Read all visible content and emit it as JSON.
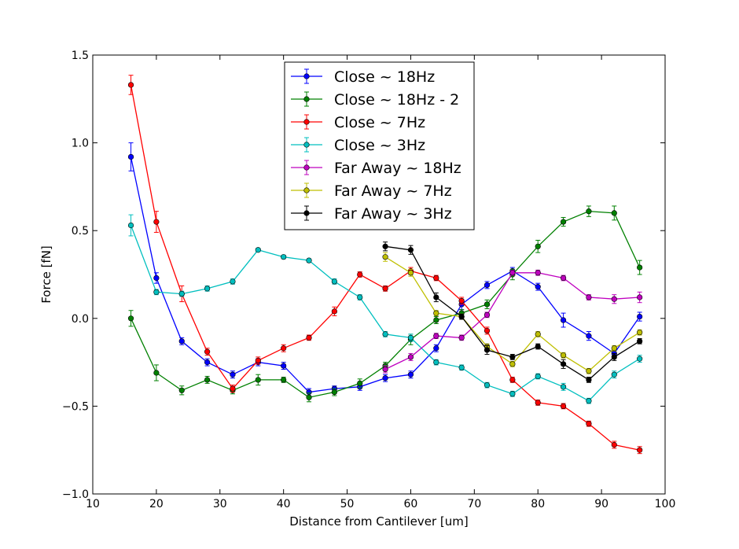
{
  "chart_data": {
    "type": "line",
    "title": "",
    "xlabel": "Distance from Cantilever [um]",
    "ylabel": "Force [fN]",
    "xlim": [
      10,
      100
    ],
    "ylim": [
      -1.0,
      1.5
    ],
    "xticks": [
      10,
      20,
      30,
      40,
      50,
      60,
      70,
      80,
      90,
      100
    ],
    "yticks": [
      -1.0,
      -0.5,
      0.0,
      0.5,
      1.0,
      1.5
    ],
    "xtick_labels": [
      "10",
      "20",
      "30",
      "40",
      "50",
      "60",
      "70",
      "80",
      "90",
      "100"
    ],
    "ytick_labels": [
      "−1.0",
      "−0.5",
      "0.0",
      "0.5",
      "1.0",
      "1.5"
    ],
    "grid": false,
    "legend_position": "top-center",
    "series": [
      {
        "name": "Close ~ 18Hz",
        "color": "#0000ff",
        "x": [
          16,
          20,
          24,
          28,
          32,
          36,
          40,
          44,
          48,
          52,
          56,
          60,
          64,
          68,
          72,
          76,
          80,
          84,
          88,
          92,
          96
        ],
        "y": [
          0.92,
          0.23,
          -0.13,
          -0.25,
          -0.32,
          -0.25,
          -0.27,
          -0.42,
          -0.4,
          -0.39,
          -0.34,
          -0.32,
          -0.17,
          0.08,
          0.19,
          0.27,
          0.18,
          -0.01,
          -0.1,
          -0.2,
          0.01
        ],
        "err": [
          0.08,
          0.03,
          0.02,
          0.02,
          0.02,
          0.02,
          0.02,
          0.02,
          0.015,
          0.02,
          0.02,
          0.02,
          0.02,
          0.03,
          0.02,
          0.02,
          0.02,
          0.04,
          0.025,
          0.02,
          0.025
        ]
      },
      {
        "name": "Close ~ 18Hz - 2",
        "color": "#008000",
        "x": [
          16,
          20,
          24,
          28,
          32,
          36,
          40,
          44,
          48,
          52,
          56,
          60,
          64,
          68,
          72,
          76,
          80,
          84,
          88,
          92,
          96
        ],
        "y": [
          0.0,
          -0.31,
          -0.41,
          -0.35,
          -0.41,
          -0.35,
          -0.35,
          -0.45,
          -0.42,
          -0.37,
          -0.27,
          -0.12,
          -0.01,
          0.03,
          0.08,
          0.25,
          0.41,
          0.55,
          0.61,
          0.6,
          0.29
        ],
        "err": [
          0.045,
          0.045,
          0.025,
          0.02,
          0.02,
          0.03,
          0.015,
          0.025,
          0.02,
          0.025,
          0.02,
          0.03,
          0.02,
          0.02,
          0.025,
          0.03,
          0.035,
          0.025,
          0.03,
          0.04,
          0.04
        ]
      },
      {
        "name": "Close ~ 7Hz",
        "color": "#ff0000",
        "x": [
          16,
          20,
          24,
          28,
          32,
          36,
          40,
          44,
          48,
          52,
          56,
          60,
          64,
          68,
          72,
          76,
          80,
          84,
          88,
          92,
          96
        ],
        "y": [
          1.33,
          0.55,
          0.14,
          -0.19,
          -0.4,
          -0.24,
          -0.17,
          -0.11,
          0.04,
          0.25,
          0.17,
          0.27,
          0.23,
          0.1,
          -0.07,
          -0.35,
          -0.48,
          -0.5,
          -0.6,
          -0.72,
          -0.75
        ],
        "err": [
          0.055,
          0.06,
          0.045,
          0.02,
          0.02,
          0.02,
          0.02,
          0.015,
          0.025,
          0.015,
          0.015,
          0.02,
          0.015,
          0.02,
          0.02,
          0.015,
          0.015,
          0.015,
          0.015,
          0.02,
          0.02
        ]
      },
      {
        "name": "Close ~ 3Hz",
        "color": "#00bfbf",
        "x": [
          16,
          20,
          24,
          28,
          32,
          36,
          40,
          44,
          48,
          52,
          56,
          60,
          64,
          68,
          72,
          76,
          80,
          84,
          88,
          92,
          96
        ],
        "y": [
          0.53,
          0.15,
          0.14,
          0.17,
          0.21,
          0.39,
          0.35,
          0.33,
          0.21,
          0.12,
          -0.09,
          -0.11,
          -0.25,
          -0.28,
          -0.38,
          -0.43,
          -0.33,
          -0.39,
          -0.47,
          -0.32,
          -0.23
        ],
        "err": [
          0.06,
          0.015,
          0.015,
          0.015,
          0.015,
          0.01,
          0.01,
          0.01,
          0.015,
          0.015,
          0.015,
          0.02,
          0.015,
          0.015,
          0.015,
          0.015,
          0.015,
          0.02,
          0.015,
          0.02,
          0.02
        ]
      },
      {
        "name": "Far Away ~ 18Hz",
        "color": "#bf00bf",
        "x": [
          56,
          60,
          64,
          68,
          72,
          76,
          80,
          84,
          88,
          92,
          96
        ],
        "y": [
          -0.29,
          -0.22,
          -0.1,
          -0.11,
          0.02,
          0.26,
          0.26,
          0.23,
          0.12,
          0.11,
          0.12
        ],
        "err": [
          0.02,
          0.02,
          0.015,
          0.015,
          0.015,
          0.015,
          0.015,
          0.015,
          0.015,
          0.025,
          0.03
        ]
      },
      {
        "name": "Far Away ~ 7Hz",
        "color": "#bfbf00",
        "x": [
          56,
          60,
          64,
          68,
          72,
          76,
          80,
          84,
          88,
          92,
          96
        ],
        "y": [
          0.35,
          0.26,
          0.03,
          0.01,
          -0.16,
          -0.26,
          -0.09,
          -0.21,
          -0.3,
          -0.17,
          -0.08
        ],
        "err": [
          0.025,
          0.02,
          0.015,
          0.015,
          0.015,
          0.015,
          0.015,
          0.015,
          0.015,
          0.015,
          0.015
        ]
      },
      {
        "name": "Far Away ~ 3Hz",
        "color": "#000000",
        "x": [
          56,
          60,
          64,
          68,
          72,
          76,
          80,
          84,
          88,
          92,
          96
        ],
        "y": [
          0.41,
          0.39,
          0.12,
          0.01,
          -0.18,
          -0.22,
          -0.16,
          -0.26,
          -0.35,
          -0.22,
          -0.13
        ],
        "err": [
          0.025,
          0.025,
          0.025,
          0.015,
          0.025,
          0.015,
          0.015,
          0.025,
          0.015,
          0.02,
          0.015
        ]
      }
    ]
  }
}
